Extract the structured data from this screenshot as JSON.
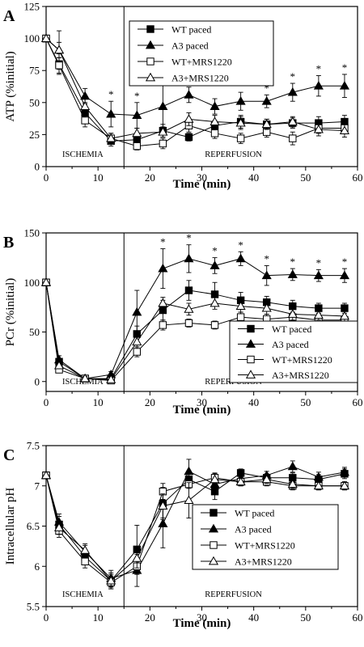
{
  "panel_letters": [
    "A",
    "B",
    "C"
  ],
  "chart_data": [
    {
      "type": "line",
      "panel": "A",
      "xlabel": "Time (min)",
      "ylabel": "ATP (%initial)",
      "xlim": [
        0,
        60
      ],
      "ylim": [
        0,
        125
      ],
      "xticks": [
        0,
        10,
        20,
        30,
        40,
        50,
        60
      ],
      "yticks": [
        0,
        25,
        50,
        75,
        100,
        125
      ],
      "regions": [
        {
          "label": "ISCHEMIA",
          "from": 0,
          "to": 15
        },
        {
          "label": "REPERFUSION",
          "from": 15,
          "to": 60
        }
      ],
      "divider_x": 15,
      "legend_position": "top-right",
      "series": [
        {
          "name": "WT paced",
          "marker": "filled-square",
          "x": [
            0,
            2.5,
            7.5,
            12.5,
            17.5,
            22.5,
            27.5,
            32.5,
            37.5,
            42.5,
            47.5,
            52.5,
            57.5
          ],
          "y": [
            100,
            80,
            42,
            20,
            21,
            28,
            23,
            32,
            35,
            33,
            34,
            34,
            35
          ],
          "err": [
            0,
            8,
            8,
            4,
            4,
            5,
            3,
            4,
            5,
            4,
            4,
            5,
            5
          ]
        },
        {
          "name": "A3 paced",
          "marker": "filled-triangle",
          "x": [
            0,
            2.5,
            7.5,
            12.5,
            17.5,
            22.5,
            27.5,
            32.5,
            37.5,
            42.5,
            47.5,
            52.5,
            57.5
          ],
          "y": [
            100,
            91,
            55,
            41,
            40,
            47,
            56,
            47,
            51,
            51,
            58,
            63,
            63
          ],
          "err": [
            0,
            15,
            6,
            10,
            10,
            17,
            6,
            6,
            7,
            5,
            7,
            8,
            9
          ]
        },
        {
          "name": "WT+MRS1220",
          "marker": "open-square",
          "x": [
            0,
            2.5,
            7.5,
            12.5,
            17.5,
            22.5,
            27.5,
            32.5,
            37.5,
            42.5,
            47.5,
            52.5,
            57.5
          ],
          "y": [
            100,
            79,
            36,
            22,
            16,
            18,
            32,
            26,
            22,
            27,
            22,
            30,
            30
          ],
          "err": [
            0,
            6,
            5,
            4,
            3,
            4,
            5,
            4,
            4,
            4,
            5,
            4,
            4
          ]
        },
        {
          "name": "A3+MRS1220",
          "marker": "open-triangle",
          "x": [
            0,
            2.5,
            7.5,
            12.5,
            17.5,
            22.5,
            27.5,
            32.5,
            37.5,
            42.5,
            47.5,
            52.5,
            57.5
          ],
          "y": [
            100,
            91,
            47,
            22,
            26,
            27,
            37,
            35,
            34,
            33,
            35,
            29,
            28
          ],
          "err": [
            0,
            6,
            7,
            4,
            4,
            4,
            5,
            5,
            5,
            4,
            4,
            5,
            5
          ]
        }
      ],
      "significance_x": [
        12.5,
        17.5,
        27.5,
        42.5,
        47.5,
        52.5,
        57.5
      ],
      "significance_mark": "*"
    },
    {
      "type": "line",
      "panel": "B",
      "xlabel": "Time (min)",
      "ylabel": "PCr (%initial)",
      "xlim": [
        0,
        60
      ],
      "ylim": [
        -10,
        150
      ],
      "xticks": [
        0,
        10,
        20,
        30,
        40,
        50,
        60
      ],
      "yticks": [
        0,
        50,
        100,
        150
      ],
      "regions": [
        {
          "label": "ISCHEMIA",
          "from": 0,
          "to": 15
        },
        {
          "label": "REPERFUSION",
          "from": 15,
          "to": 60
        }
      ],
      "divider_x": 15,
      "legend_position": "bottom-right",
      "series": [
        {
          "name": "WT paced",
          "marker": "filled-square",
          "x": [
            0,
            2.5,
            7.5,
            12.5,
            17.5,
            22.5,
            27.5,
            32.5,
            37.5,
            42.5,
            47.5,
            52.5,
            57.5
          ],
          "y": [
            100,
            20,
            3,
            3,
            48,
            72,
            92,
            88,
            82,
            80,
            76,
            74,
            74
          ],
          "err": [
            0,
            3,
            2,
            2,
            8,
            10,
            10,
            12,
            8,
            6,
            6,
            5,
            5
          ]
        },
        {
          "name": "A3 paced",
          "marker": "filled-triangle",
          "x": [
            0,
            2.5,
            7.5,
            12.5,
            17.5,
            22.5,
            27.5,
            32.5,
            37.5,
            42.5,
            47.5,
            52.5,
            57.5
          ],
          "y": [
            100,
            22,
            3,
            7,
            70,
            114,
            124,
            117,
            124,
            107,
            108,
            107,
            107
          ],
          "err": [
            0,
            4,
            2,
            3,
            22,
            20,
            14,
            8,
            7,
            10,
            6,
            6,
            7
          ]
        },
        {
          "name": "WT+MRS1220",
          "marker": "open-square",
          "x": [
            0,
            2.5,
            7.5,
            12.5,
            17.5,
            22.5,
            27.5,
            32.5,
            37.5,
            42.5,
            47.5,
            52.5,
            57.5
          ],
          "y": [
            100,
            12,
            3,
            1,
            30,
            57,
            59,
            57,
            65,
            63,
            65,
            62,
            62
          ],
          "err": [
            0,
            3,
            2,
            2,
            5,
            5,
            4,
            4,
            5,
            5,
            5,
            4,
            4
          ]
        },
        {
          "name": "A3+MRS1220",
          "marker": "open-triangle",
          "x": [
            0,
            2.5,
            7.5,
            12.5,
            17.5,
            22.5,
            27.5,
            32.5,
            37.5,
            42.5,
            47.5,
            52.5,
            57.5
          ],
          "y": [
            100,
            16,
            3,
            2,
            40,
            79,
            73,
            79,
            76,
            74,
            68,
            67,
            66
          ],
          "err": [
            0,
            3,
            2,
            2,
            5,
            6,
            6,
            6,
            6,
            6,
            6,
            5,
            5
          ]
        }
      ],
      "significance_x": [
        22.5,
        27.5,
        32.5,
        37.5,
        42.5,
        47.5,
        52.5,
        57.5
      ],
      "significance_mark": "*"
    },
    {
      "type": "line",
      "panel": "C",
      "xlabel": "Time (min)",
      "ylabel": "Intracellular pH",
      "xlim": [
        0,
        60
      ],
      "ylim": [
        5.5,
        7.5
      ],
      "xticks": [
        0,
        10,
        20,
        30,
        40,
        50,
        60
      ],
      "yticks": [
        5.5,
        6,
        6.5,
        7,
        7.5
      ],
      "regions": [
        {
          "label": "ISCHEMIA",
          "from": 0,
          "to": 15
        },
        {
          "label": "REPERFUSION",
          "from": 15,
          "to": 60
        }
      ],
      "divider_x": 15,
      "legend_position": "center-right",
      "series": [
        {
          "name": "WT paced",
          "marker": "filled-square",
          "x": [
            0,
            2.5,
            7.5,
            12.5,
            17.5,
            22.5,
            27.5,
            32.5,
            37.5,
            42.5,
            47.5,
            52.5,
            57.5
          ],
          "y": [
            7.13,
            6.52,
            6.12,
            5.82,
            6.21,
            6.78,
            7.08,
            6.93,
            7.16,
            7.1,
            7.1,
            7.08,
            7.15
          ],
          "err": [
            0,
            0.1,
            0.08,
            0.08,
            0.3,
            0.2,
            0.1,
            0.1,
            0.05,
            0.05,
            0.06,
            0.06,
            0.06
          ]
        },
        {
          "name": "A3 paced",
          "marker": "filled-triangle",
          "x": [
            0,
            2.5,
            7.5,
            12.5,
            17.5,
            22.5,
            27.5,
            32.5,
            37.5,
            42.5,
            47.5,
            52.5,
            57.5
          ],
          "y": [
            7.13,
            6.55,
            6.18,
            5.85,
            5.95,
            6.53,
            7.18,
            7.02,
            7.09,
            7.13,
            7.24,
            7.11,
            7.17
          ],
          "err": [
            0,
            0.1,
            0.08,
            0.1,
            0.2,
            0.3,
            0.15,
            0.1,
            0.06,
            0.05,
            0.07,
            0.06,
            0.06
          ]
        },
        {
          "name": "WT+MRS1220",
          "marker": "open-square",
          "x": [
            0,
            2.5,
            7.5,
            12.5,
            17.5,
            22.5,
            27.5,
            32.5,
            37.5,
            42.5,
            47.5,
            52.5,
            57.5
          ],
          "y": [
            7.13,
            6.44,
            6.06,
            5.8,
            6.0,
            6.93,
            7.02,
            7.1,
            7.05,
            7.05,
            7.0,
            7.0,
            7.0
          ],
          "err": [
            0,
            0.08,
            0.08,
            0.08,
            0.1,
            0.1,
            0.05,
            0.05,
            0.05,
            0.05,
            0.05,
            0.05,
            0.05
          ]
        },
        {
          "name": "A3+MRS1220",
          "marker": "open-triangle",
          "x": [
            0,
            2.5,
            7.5,
            12.5,
            17.5,
            22.5,
            27.5,
            32.5,
            37.5,
            42.5,
            47.5,
            52.5,
            57.5
          ],
          "y": [
            7.13,
            6.48,
            6.2,
            5.82,
            6.1,
            6.75,
            6.82,
            7.08,
            7.05,
            7.08,
            7.02,
            7.0,
            7.0
          ],
          "err": [
            0,
            0.08,
            0.08,
            0.1,
            0.12,
            0.15,
            0.22,
            0.08,
            0.05,
            0.05,
            0.05,
            0.05,
            0.05
          ]
        }
      ],
      "significance_x": [],
      "significance_mark": "*"
    }
  ]
}
